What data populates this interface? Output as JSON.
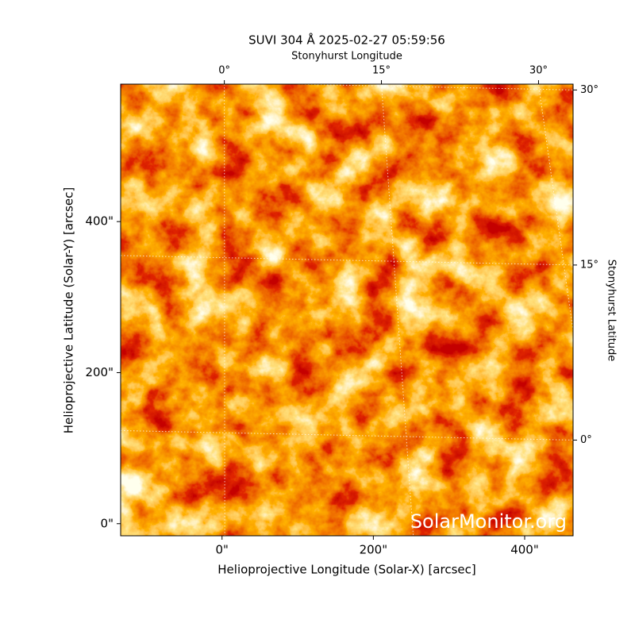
{
  "chart_data": {
    "type": "image",
    "title": "SUVI 304 Å 2025-02-27 05:59:56",
    "x_label": "Helioprojective Longitude (Solar-X) [arcsec]",
    "y_label": "Helioprojective Latitude (Solar-Y) [arcsec]",
    "x2_label": "Stonyhurst Longitude",
    "y2_label": "Stonyhurst Latitude",
    "watermark": "SolarMonitor.org",
    "xlim": [
      -134,
      464
    ],
    "ylim": [
      -16,
      582
    ],
    "xticks": [
      {
        "value": 0,
        "label": "0\""
      },
      {
        "value": 200,
        "label": "200\""
      },
      {
        "value": 400,
        "label": "400\""
      }
    ],
    "yticks": [
      {
        "value": 0,
        "label": "0\""
      },
      {
        "value": 200,
        "label": "200\""
      },
      {
        "value": 400,
        "label": "400\""
      }
    ],
    "x2lim": [
      -9.9,
      33.3
    ],
    "y2lim": [
      -8.2,
      30.5
    ],
    "x2ticks": [
      {
        "value": 0,
        "label": "0°"
      },
      {
        "value": 15,
        "label": "15°"
      },
      {
        "value": 30,
        "label": "30°"
      }
    ],
    "y2ticks": [
      {
        "value": 0,
        "label": "0°"
      },
      {
        "value": 15,
        "label": "15°"
      },
      {
        "value": 30,
        "label": "30°"
      }
    ],
    "grid": true
  }
}
